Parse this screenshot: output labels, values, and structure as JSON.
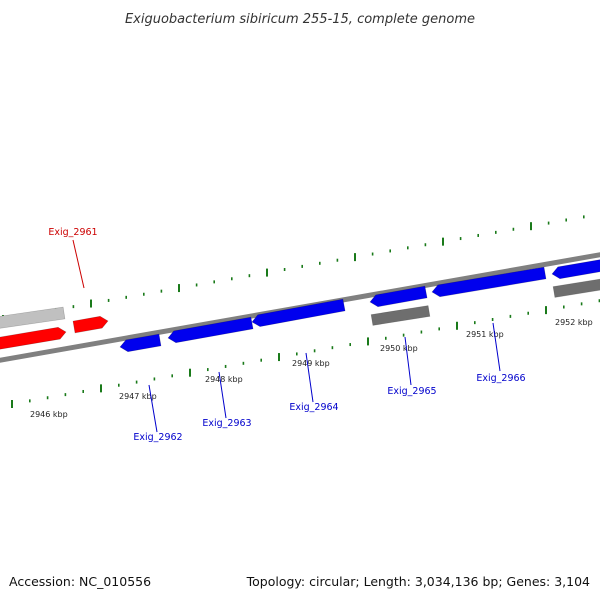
{
  "title": "Exiguobacterium sibiricum 255-15, complete genome",
  "footer": {
    "accession": "Accession: NC_010556",
    "summary": "Topology: circular; Length: 3,034,136 bp; Genes: 3,104"
  },
  "colors": {
    "forward_gene": "#ff0000",
    "reverse_gene": "#0000ee",
    "forward_other": "#c0c0c0",
    "reverse_other": "#6e6e6e",
    "backbone": "#808080",
    "tick": "#1a7a1a",
    "forward_label": "#cc0000",
    "reverse_label": "#0000cc"
  },
  "kbp_labels": [
    "2946 kbp",
    "2947 kbp",
    "2948 kbp",
    "2949 kbp",
    "2950 kbp",
    "2951 kbp",
    "2952 kbp"
  ],
  "gene_labels": [
    {
      "text": "Exig_2961",
      "strand": "forward"
    },
    {
      "text": "Exig_2962",
      "strand": "reverse"
    },
    {
      "text": "Exig_2963",
      "strand": "reverse"
    },
    {
      "text": "Exig_2964",
      "strand": "reverse"
    },
    {
      "text": "Exig_2965",
      "strand": "reverse"
    },
    {
      "text": "Exig_2966",
      "strand": "reverse"
    }
  ]
}
